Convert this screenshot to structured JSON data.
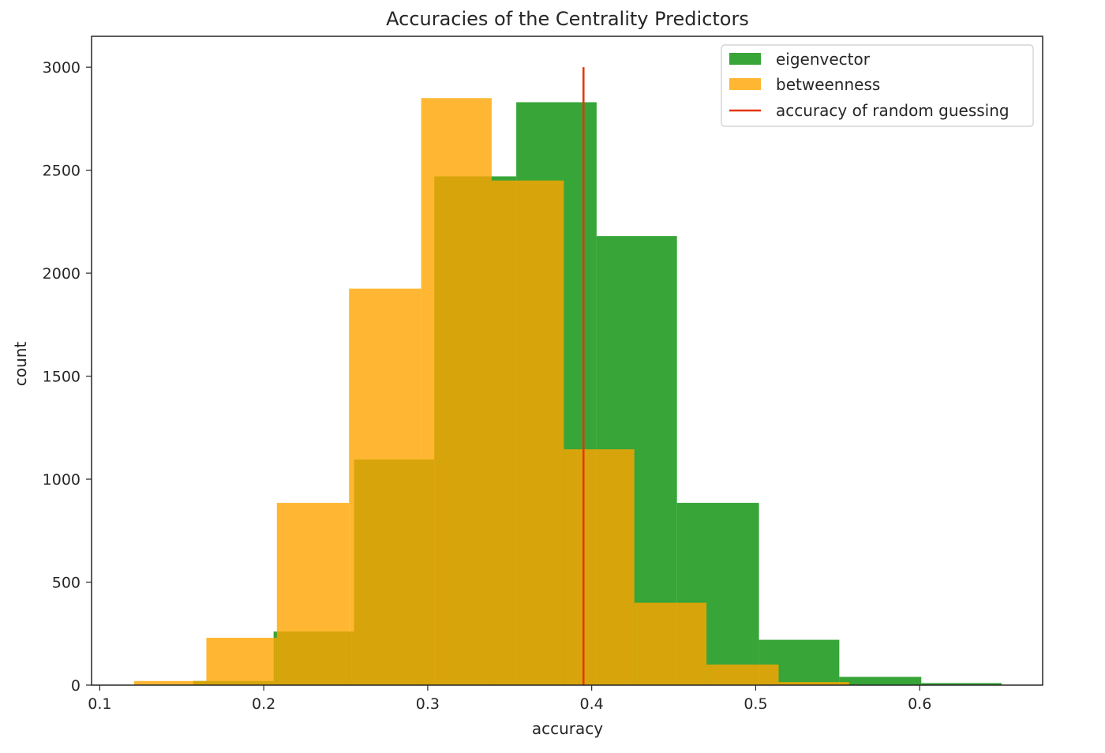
{
  "chart_data": {
    "type": "bar",
    "title": "Accuracies of the Centrality Predictors",
    "xlabel": "accuracy",
    "ylabel": "count",
    "xlim": [
      0.095,
      0.675
    ],
    "ylim": [
      0,
      3150
    ],
    "xticks": [
      0.1,
      0.2,
      0.3,
      0.4,
      0.5,
      0.6
    ],
    "xtick_labels": [
      "0.1",
      "0.2",
      "0.3",
      "0.4",
      "0.5",
      "0.6"
    ],
    "yticks": [
      0,
      500,
      1000,
      1500,
      2000,
      2500,
      3000
    ],
    "ytick_labels": [
      "0",
      "500",
      "1000",
      "1500",
      "2000",
      "2500",
      "3000"
    ],
    "grid": false,
    "legend_position": "top-right",
    "series": [
      {
        "name": "eigenvector",
        "color": "#2ca02c",
        "alpha": 0.95,
        "bin_edges": [
          0.157,
          0.206,
          0.255,
          0.304,
          0.354,
          0.403,
          0.452,
          0.502,
          0.551,
          0.601,
          0.65
        ],
        "counts": [
          20,
          260,
          1095,
          2470,
          2830,
          2180,
          885,
          220,
          40,
          10
        ]
      },
      {
        "name": "betweenness",
        "color": "#ffa500",
        "alpha": 0.8,
        "bin_edges": [
          0.121,
          0.165,
          0.208,
          0.252,
          0.296,
          0.339,
          0.383,
          0.426,
          0.47,
          0.514,
          0.557
        ],
        "counts": [
          20,
          230,
          885,
          1925,
          2850,
          2450,
          1145,
          400,
          100,
          15
        ]
      }
    ],
    "reference_line": {
      "name": "accuracy of random guessing",
      "color": "#e8340a",
      "x": 0.395,
      "y_range": [
        0,
        3000
      ]
    }
  }
}
